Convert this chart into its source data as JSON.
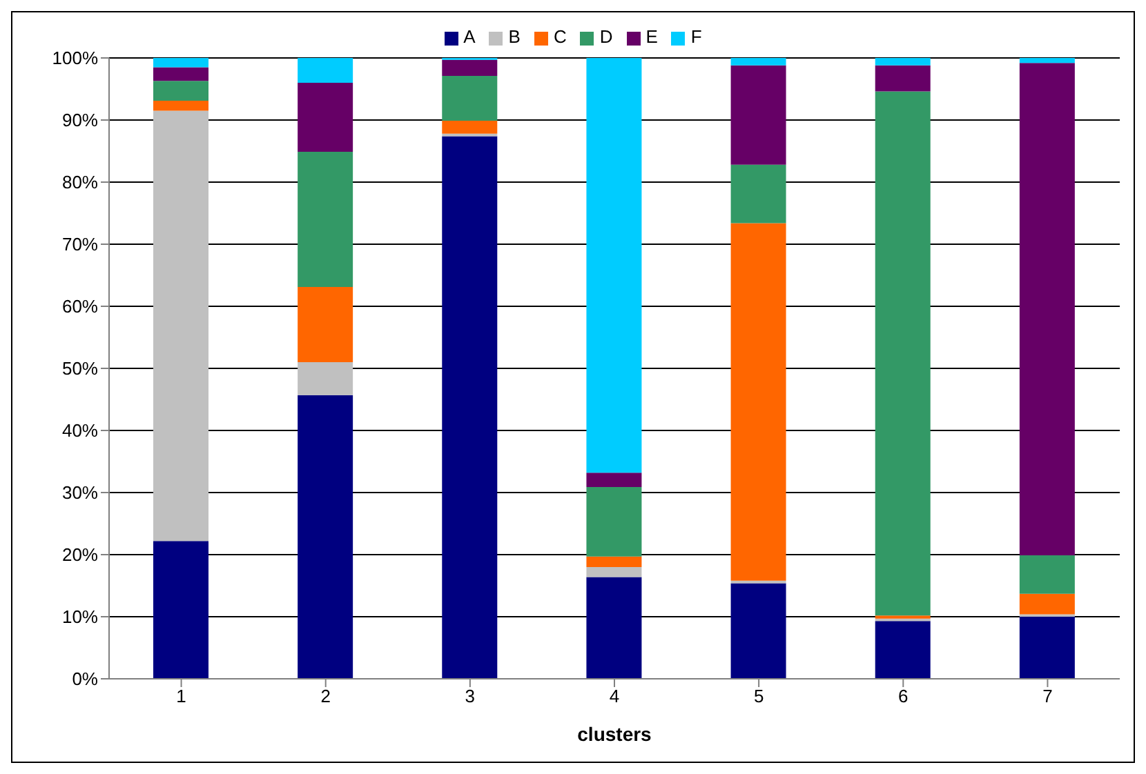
{
  "chart_data": {
    "type": "bar",
    "stacked": true,
    "xlabel": "clusters",
    "categories": [
      "1",
      "2",
      "3",
      "4",
      "5",
      "6",
      "7"
    ],
    "series": [
      {
        "name": "A",
        "color": "#000080",
        "values": [
          22.2,
          45.7,
          87.4,
          16.4,
          15.4,
          9.3,
          10.0
        ]
      },
      {
        "name": "B",
        "color": "#c0c0c0",
        "values": [
          69.3,
          5.3,
          0.4,
          1.6,
          0.4,
          0.4,
          0.4
        ]
      },
      {
        "name": "C",
        "color": "#ff6600",
        "values": [
          1.6,
          12.1,
          2.1,
          1.7,
          57.6,
          0.5,
          3.3
        ]
      },
      {
        "name": "D",
        "color": "#339966",
        "values": [
          3.2,
          21.8,
          7.2,
          11.2,
          9.4,
          84.4,
          6.2
        ]
      },
      {
        "name": "E",
        "color": "#660066",
        "values": [
          2.2,
          11.1,
          2.6,
          2.3,
          16.0,
          4.2,
          79.3
        ]
      },
      {
        "name": "F",
        "color": "#00ccff",
        "values": [
          1.5,
          4.0,
          0.3,
          66.8,
          1.2,
          1.2,
          0.8
        ]
      }
    ],
    "ylim": [
      0,
      100
    ],
    "yticks": [
      {
        "value": 0,
        "label": "0%"
      },
      {
        "value": 10,
        "label": "10%"
      },
      {
        "value": 20,
        "label": "20%"
      },
      {
        "value": 30,
        "label": "30%"
      },
      {
        "value": 40,
        "label": "40%"
      },
      {
        "value": 50,
        "label": "50%"
      },
      {
        "value": 60,
        "label": "60%"
      },
      {
        "value": 70,
        "label": "70%"
      },
      {
        "value": 80,
        "label": "80%"
      },
      {
        "value": 90,
        "label": "90%"
      },
      {
        "value": 100,
        "label": "100%"
      }
    ],
    "grid": "y",
    "legend": "top"
  }
}
